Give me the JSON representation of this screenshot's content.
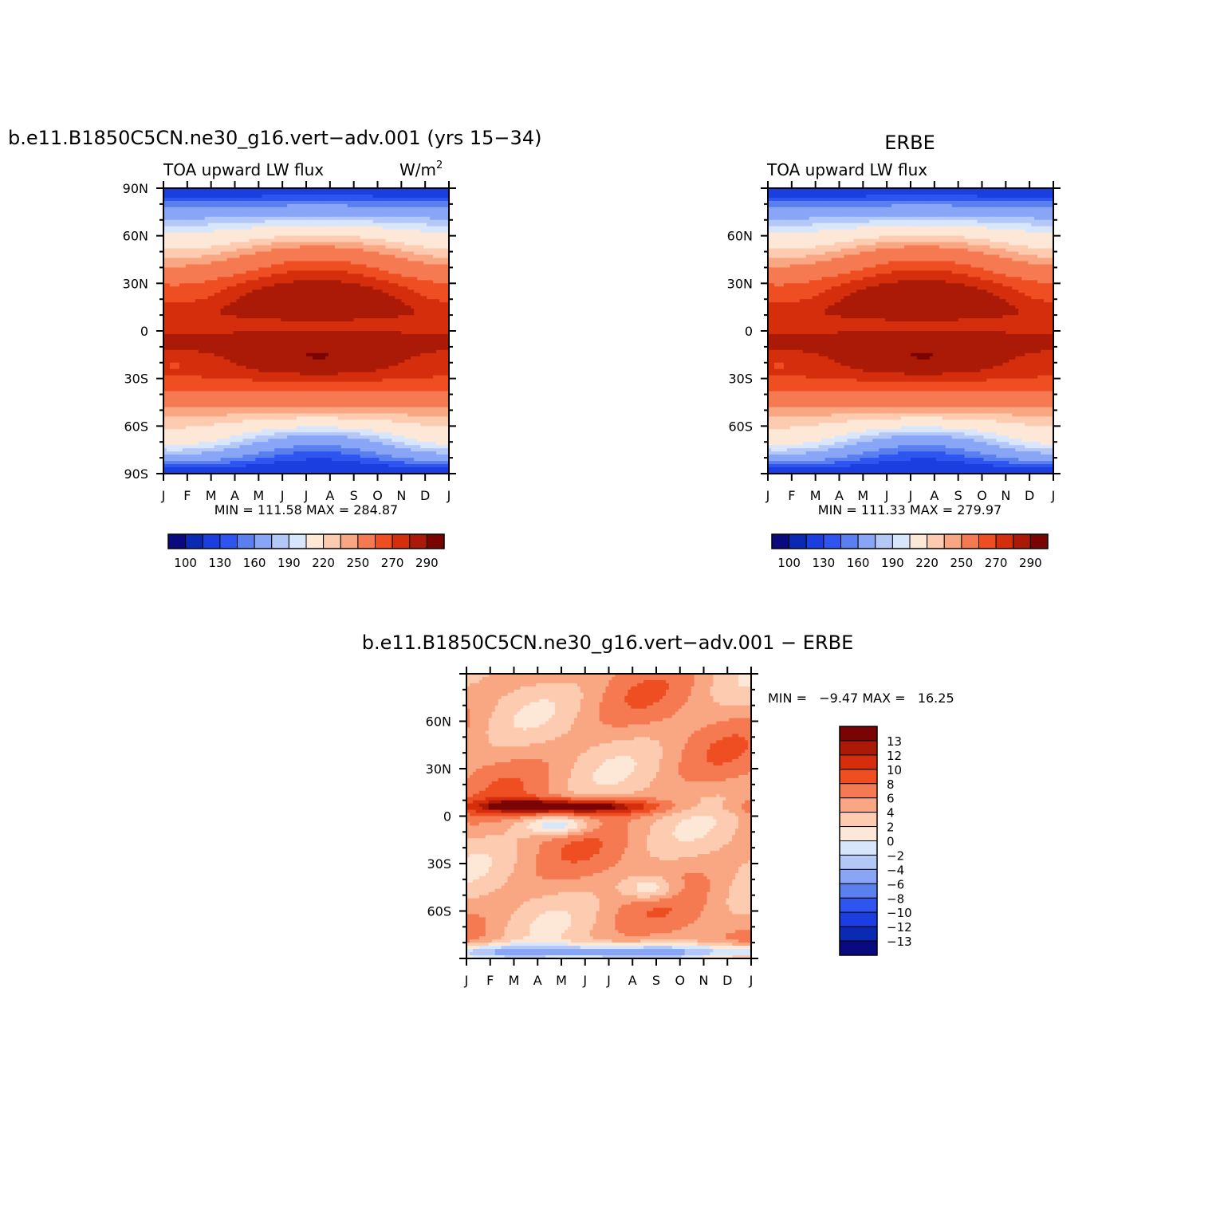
{
  "palette": {
    "abs": [
      "#0a0a80",
      "#0a2ab4",
      "#1a3ee0",
      "#2f55f0",
      "#5a80f0",
      "#88a6f5",
      "#b4c8f8",
      "#d8e6fb",
      "#fde8d8",
      "#fccbb0",
      "#f9a682",
      "#f57a52",
      "#ee4e22",
      "#d42e0c",
      "#aa1a06",
      "#7a0404"
    ],
    "diff": [
      "#0a0a80",
      "#0a2ab4",
      "#1a3ee0",
      "#2f55f0",
      "#5a80f0",
      "#88a6f5",
      "#b4c8f8",
      "#d8e6fb",
      "#fde8d8",
      "#fccbb0",
      "#f9a682",
      "#f57a52",
      "#ee4e22",
      "#d42e0c",
      "#aa1a06",
      "#7a0404"
    ]
  },
  "chart_data": [
    {
      "id": "model",
      "type": "heatmap",
      "header_title": "b.e11.B1850C5CN.ne30_g16.vert−adv.001 (yrs 15−34)",
      "left_label": "TOA upward LW flux",
      "units_base": "W/m",
      "units_sup": "2",
      "x_labels": [
        "J",
        "F",
        "M",
        "A",
        "M",
        "J",
        "J",
        "A",
        "S",
        "O",
        "N",
        "D",
        "J"
      ],
      "y_labels": [
        "90N",
        "60N",
        "30N",
        "0",
        "30S",
        "60S",
        "90S"
      ],
      "y_values": [
        90,
        60,
        30,
        0,
        -30,
        -60,
        -90
      ],
      "ylim": [
        -90,
        90
      ],
      "min_max": "MIN = 111.58 MAX = 284.87",
      "levels": [
        100,
        110,
        120,
        130,
        140,
        150,
        160,
        170,
        180,
        190,
        200,
        210,
        220,
        230,
        240,
        250,
        260,
        270,
        280,
        290
      ],
      "colorbar_labels": [
        "100",
        "130",
        "160",
        "190",
        "220",
        "250",
        "270",
        "290"
      ],
      "field": "abs"
    },
    {
      "id": "obs",
      "type": "heatmap",
      "header_title": "ERBE",
      "left_label": "TOA upward LW flux",
      "x_labels": [
        "J",
        "F",
        "M",
        "A",
        "M",
        "J",
        "J",
        "A",
        "S",
        "O",
        "N",
        "D",
        "J"
      ],
      "y_labels": [
        "60N",
        "30N",
        "0",
        "30S",
        "60S"
      ],
      "y_values": [
        60,
        30,
        0,
        -30,
        -60
      ],
      "ylim": [
        -90,
        90
      ],
      "min_max": "MIN = 111.33 MAX = 279.97",
      "levels": [
        100,
        110,
        120,
        130,
        140,
        150,
        160,
        170,
        180,
        190,
        200,
        210,
        220,
        230,
        240,
        250,
        260,
        270,
        280,
        290
      ],
      "colorbar_labels": [
        "100",
        "130",
        "160",
        "190",
        "220",
        "250",
        "270",
        "290"
      ],
      "field": "abs"
    },
    {
      "id": "diff",
      "type": "heatmap",
      "header_title": "b.e11.B1850C5CN.ne30_g16.vert−adv.001 − ERBE",
      "x_labels": [
        "J",
        "F",
        "M",
        "A",
        "M",
        "J",
        "J",
        "A",
        "S",
        "O",
        "N",
        "D",
        "J"
      ],
      "y_labels": [
        "60N",
        "30N",
        "0",
        "30S",
        "60S"
      ],
      "y_values": [
        60,
        30,
        0,
        -30,
        -60
      ],
      "ylim": [
        -90,
        90
      ],
      "min_max": "MIN =   −9.47 MAX =   16.25",
      "levels": [
        -13,
        -12,
        -10,
        -8,
        -6,
        -4,
        -2,
        0,
        2,
        4,
        6,
        8,
        10,
        12,
        13
      ],
      "colorbar_labels": [
        "13",
        "12",
        "10",
        "8",
        "6",
        "4",
        "2",
        "0",
        "−2",
        "−4",
        "−6",
        "−8",
        "−10",
        "−12",
        "−13"
      ],
      "field": "diff"
    }
  ]
}
